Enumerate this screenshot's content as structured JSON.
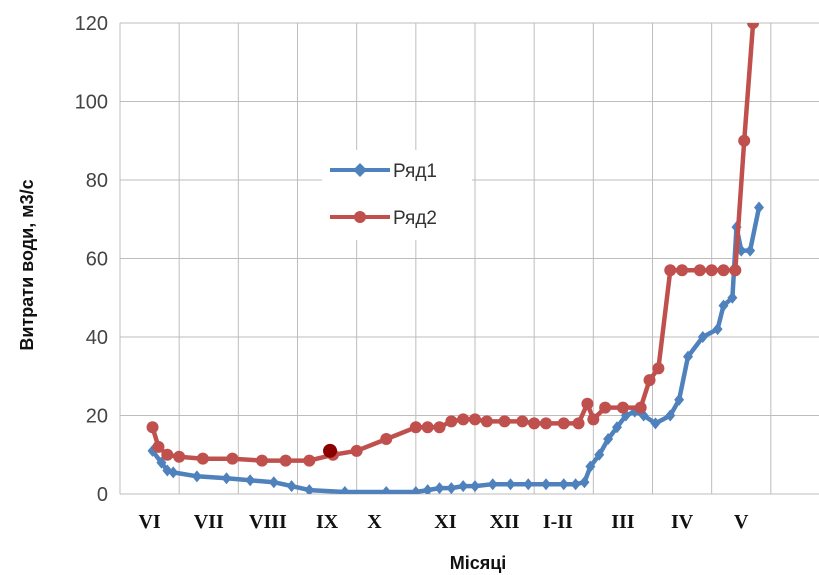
{
  "chart_data": {
    "type": "line",
    "xlabel": "Місяці",
    "ylabel": "Витрати води, м3/с",
    "ylim": [
      0,
      120
    ],
    "yticks": [
      "0",
      "20",
      "40",
      "60",
      "80",
      "100",
      "120"
    ],
    "xlim": [
      0,
      12
    ],
    "categories": [
      "VI",
      "VII",
      "VIII",
      "IX",
      "X",
      "XI",
      "XII",
      "I-II",
      "III",
      "IV",
      "V"
    ],
    "category_positions": [
      0.5,
      1.5,
      2.5,
      3.5,
      4.3,
      5.5,
      6.5,
      7.4,
      8.5,
      9.5,
      10.5
    ],
    "grid": true,
    "legend_position": "center-left",
    "series": [
      {
        "name": "Ряд1",
        "color": "#4f81bd",
        "marker": "diamond",
        "points": [
          [
            0.55,
            11
          ],
          [
            0.7,
            8
          ],
          [
            0.8,
            6
          ],
          [
            0.9,
            5.5
          ],
          [
            1.3,
            4.5
          ],
          [
            1.8,
            4
          ],
          [
            2.2,
            3.5
          ],
          [
            2.6,
            3
          ],
          [
            2.9,
            2
          ],
          [
            3.2,
            1
          ],
          [
            3.8,
            0.5
          ],
          [
            4.5,
            0.5
          ],
          [
            5.0,
            0.5
          ],
          [
            5.2,
            1
          ],
          [
            5.4,
            1.5
          ],
          [
            5.6,
            1.5
          ],
          [
            5.8,
            2
          ],
          [
            6.0,
            2
          ],
          [
            6.3,
            2.5
          ],
          [
            6.6,
            2.5
          ],
          [
            6.9,
            2.5
          ],
          [
            7.2,
            2.5
          ],
          [
            7.5,
            2.5
          ],
          [
            7.7,
            2.5
          ],
          [
            7.85,
            3
          ],
          [
            7.95,
            7
          ],
          [
            8.1,
            10
          ],
          [
            8.25,
            14
          ],
          [
            8.4,
            17
          ],
          [
            8.55,
            20
          ],
          [
            8.7,
            21
          ],
          [
            8.85,
            20
          ],
          [
            9.05,
            18
          ],
          [
            9.3,
            20
          ],
          [
            9.45,
            24
          ],
          [
            9.6,
            35
          ],
          [
            9.85,
            40
          ],
          [
            10.1,
            42
          ],
          [
            10.2,
            48
          ],
          [
            10.35,
            50
          ],
          [
            10.42,
            68
          ],
          [
            10.5,
            62
          ],
          [
            10.65,
            62
          ],
          [
            10.8,
            73
          ]
        ]
      },
      {
        "name": "Ряд2",
        "color": "#c0504d",
        "marker": "circle",
        "points": [
          [
            0.55,
            17
          ],
          [
            0.65,
            12
          ],
          [
            0.8,
            10
          ],
          [
            1.0,
            9.5
          ],
          [
            1.4,
            9
          ],
          [
            1.9,
            9
          ],
          [
            2.4,
            8.5
          ],
          [
            2.8,
            8.5
          ],
          [
            3.2,
            8.5
          ],
          [
            3.6,
            10
          ],
          [
            4.0,
            11
          ],
          [
            4.5,
            14
          ],
          [
            5.0,
            17
          ],
          [
            5.2,
            17
          ],
          [
            5.4,
            17
          ],
          [
            5.6,
            18.5
          ],
          [
            5.8,
            19
          ],
          [
            6.0,
            19
          ],
          [
            6.2,
            18.5
          ],
          [
            6.5,
            18.5
          ],
          [
            6.8,
            18.5
          ],
          [
            7.0,
            18
          ],
          [
            7.2,
            18
          ],
          [
            7.5,
            18
          ],
          [
            7.75,
            18
          ],
          [
            7.9,
            23
          ],
          [
            8.0,
            19
          ],
          [
            8.2,
            22
          ],
          [
            8.5,
            22
          ],
          [
            8.8,
            22
          ],
          [
            8.95,
            29
          ],
          [
            9.1,
            32
          ],
          [
            9.3,
            57
          ],
          [
            9.5,
            57
          ],
          [
            9.8,
            57
          ],
          [
            10.0,
            57
          ],
          [
            10.2,
            57
          ],
          [
            10.4,
            57
          ],
          [
            10.55,
            90
          ],
          [
            10.7,
            120
          ],
          [
            10.85,
            130
          ]
        ]
      }
    ],
    "annotations": [
      {
        "x": 3.55,
        "y": 11,
        "color": "#8b0000"
      }
    ]
  }
}
